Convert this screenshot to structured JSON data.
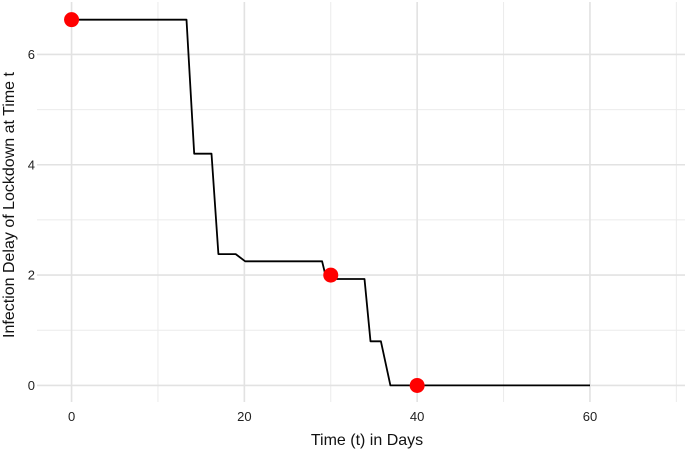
{
  "chart_data": {
    "type": "line",
    "title": "",
    "xlabel": "Time (t) in Days",
    "ylabel": "Infection Delay of Lockdown at Time t",
    "xlim": [
      -4,
      71
    ],
    "ylim": [
      -0.3,
      6.95
    ],
    "x_ticks": [
      0,
      20,
      40,
      60
    ],
    "y_ticks": [
      0,
      2,
      4,
      6
    ],
    "x_minor_gridlines": [
      10,
      30,
      50,
      70
    ],
    "y_minor_gridlines": [
      1,
      3,
      5
    ],
    "grid": true,
    "legend": "none",
    "series": [
      {
        "color": "#000000",
        "x": [
          0,
          13.3,
          14.2,
          16.2,
          17.0,
          19.0,
          20.1,
          29.0,
          29.5,
          33.9,
          34.6,
          35.8,
          36.9,
          40,
          60
        ],
        "y": [
          6.63,
          6.63,
          4.2,
          4.2,
          2.38,
          2.38,
          2.25,
          2.25,
          1.93,
          1.93,
          0.8,
          0.8,
          0.0,
          0.0,
          0.0
        ]
      }
    ],
    "highlighted_points": {
      "color": "#ff0000",
      "x": [
        0,
        30,
        40
      ],
      "y": [
        6.63,
        2.0,
        0.0
      ]
    }
  }
}
